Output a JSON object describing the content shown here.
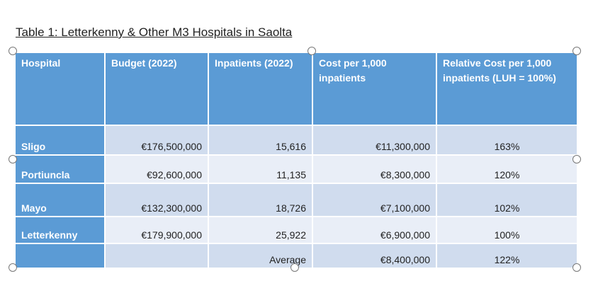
{
  "title": "Table 1: Letterkenny & Other M3 Hospitals in Saolta",
  "headers": [
    "Hospital",
    "Budget (2022)",
    "Inpatients (2022)",
    "Cost per 1,000 inpatients",
    "Relative Cost per 1,000 inpatients (LUH = 100%)"
  ],
  "rows": [
    {
      "hospital": "Sligo",
      "budget": "€176,500,000",
      "inpatients": "15,616",
      "cost": "€11,300,000",
      "relative": "163%"
    },
    {
      "hospital": "Portiuncla",
      "budget": "€92,600,000",
      "inpatients": "11,135",
      "cost": "€8,300,000",
      "relative": "120%"
    },
    {
      "hospital": "Mayo",
      "budget": "€132,300,000",
      "inpatients": "18,726",
      "cost": "€7,100,000",
      "relative": "102%"
    },
    {
      "hospital": "Letterkenny",
      "budget": "€179,900,000",
      "inpatients": "25,922",
      "cost": "€6,900,000",
      "relative": "100%"
    }
  ],
  "average": {
    "label": "Average",
    "cost": "€8,400,000",
    "relative": "122%"
  }
}
